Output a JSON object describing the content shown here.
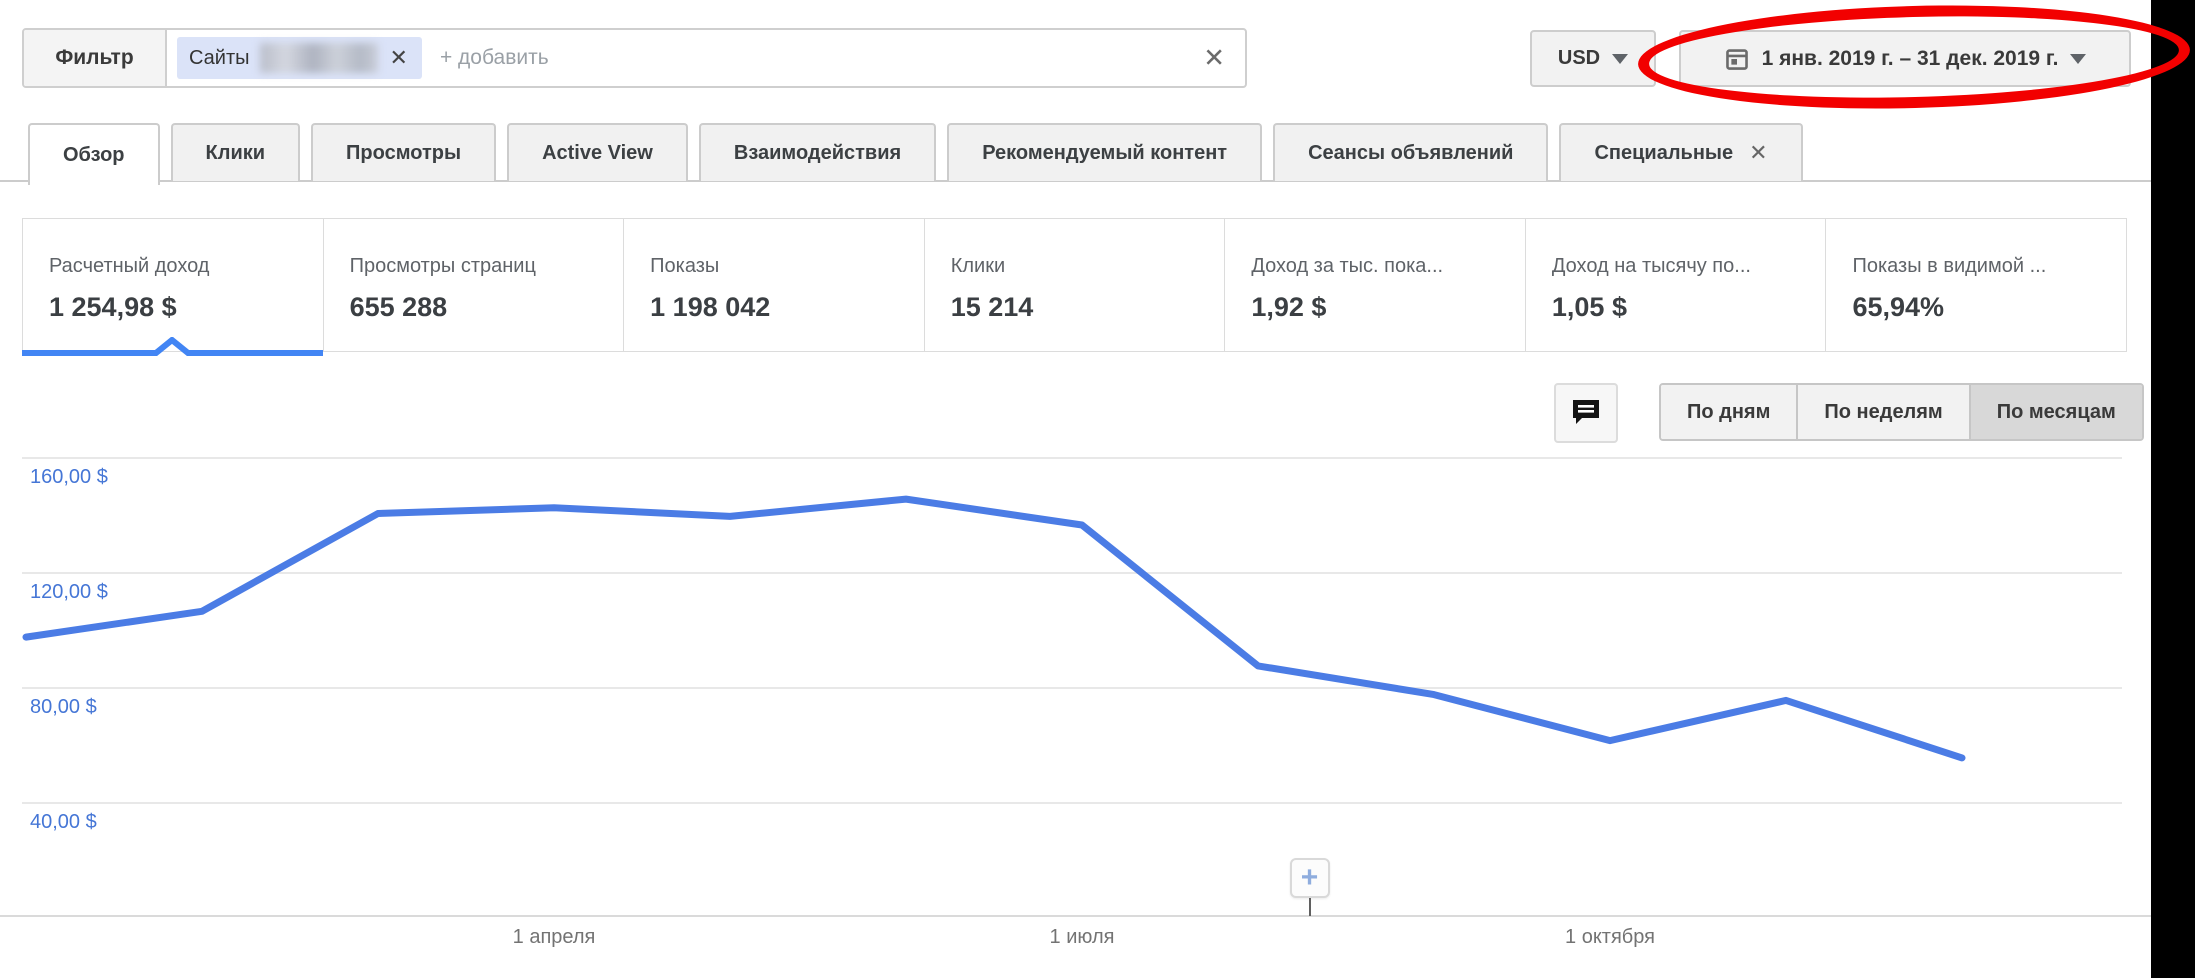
{
  "colors": {
    "accent_blue": "#4285f4",
    "line_blue": "#4b7ce5",
    "axis_label_blue": "#4576d6",
    "annotation_red": "#f20000"
  },
  "filter_bar": {
    "filter_label": "Фильтр",
    "chip": {
      "text": "Сайты",
      "remove_glyph": "✕"
    },
    "add_placeholder": "+ добавить",
    "clear_glyph": "✕"
  },
  "currency_button": {
    "label": "USD"
  },
  "date_range_button": {
    "label": "1 янв. 2019 г. – 31 дек. 2019 г."
  },
  "tabs": [
    {
      "label": "Обзор",
      "active": true
    },
    {
      "label": "Клики"
    },
    {
      "label": "Просмотры"
    },
    {
      "label": "Active View"
    },
    {
      "label": "Взаимодействия"
    },
    {
      "label": "Рекомендуемый контент"
    },
    {
      "label": "Сеансы объявлений"
    },
    {
      "label": "Специальные",
      "close_glyph": "✕"
    }
  ],
  "scorecards": [
    {
      "label": "Расчетный доход",
      "value": "1 254,98 $",
      "selected": true
    },
    {
      "label": "Просмотры страниц",
      "value": "655 288"
    },
    {
      "label": "Показы",
      "value": "1 198 042"
    },
    {
      "label": "Клики",
      "value": "15 214"
    },
    {
      "label": "Доход за тыс. пока...",
      "value": "1,92 $"
    },
    {
      "label": "Доход на тысячу по...",
      "value": "1,05 $"
    },
    {
      "label": "Показы в видимой ...",
      "value": "65,94%"
    }
  ],
  "chart_controls": {
    "granularity": [
      {
        "label": "По дням"
      },
      {
        "label": "По неделям"
      },
      {
        "label": "По месяцам",
        "selected": true
      }
    ]
  },
  "chart_data": {
    "type": "line",
    "x": [
      "2019-01",
      "2019-02",
      "2019-03",
      "2019-04",
      "2019-05",
      "2019-06",
      "2019-07",
      "2019-08",
      "2019-09",
      "2019-10",
      "2019-11",
      "2019-12"
    ],
    "series": [
      {
        "name": "Расчетный доход",
        "values": [
          97,
          106,
          140,
          142,
          139,
          145,
          136,
          87,
          77,
          61,
          75,
          55
        ]
      }
    ],
    "unit": "$",
    "ylim": [
      0,
      176
    ],
    "y_ticks": [
      160,
      120,
      80,
      40
    ],
    "y_tick_labels": [
      "160,00 $",
      "120,00 $",
      "80,00 $",
      "40,00 $"
    ],
    "x_tick_labels": [
      "1 апреля",
      "1 июля",
      "1 октября"
    ],
    "x_tick_month_indices": [
      3,
      6,
      9
    ],
    "grid": true,
    "legend": "none",
    "line_color": "#4b7ce5",
    "annotation_marker": {
      "x_fraction": 0.663,
      "glyph": "+"
    }
  }
}
